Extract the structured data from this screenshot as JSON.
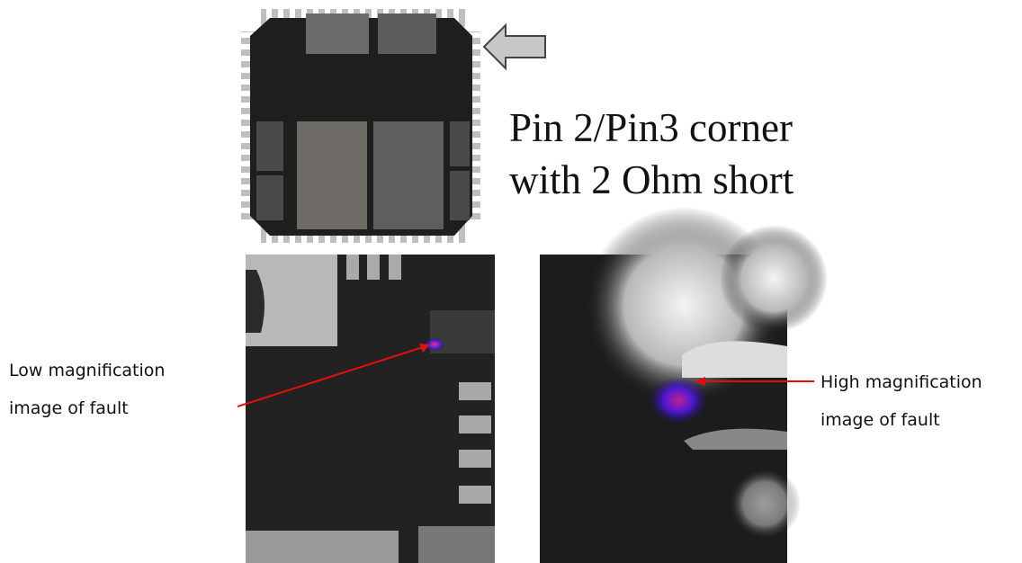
{
  "caption": {
    "lines": [
      "Pin 2/Pin3 corner",
      "with 2 Ohm short"
    ]
  },
  "low_mag_label": {
    "lines": [
      "Low magnification",
      "image of fault"
    ]
  },
  "high_mag_label": {
    "lines": [
      "High magnification",
      "image of fault"
    ]
  }
}
